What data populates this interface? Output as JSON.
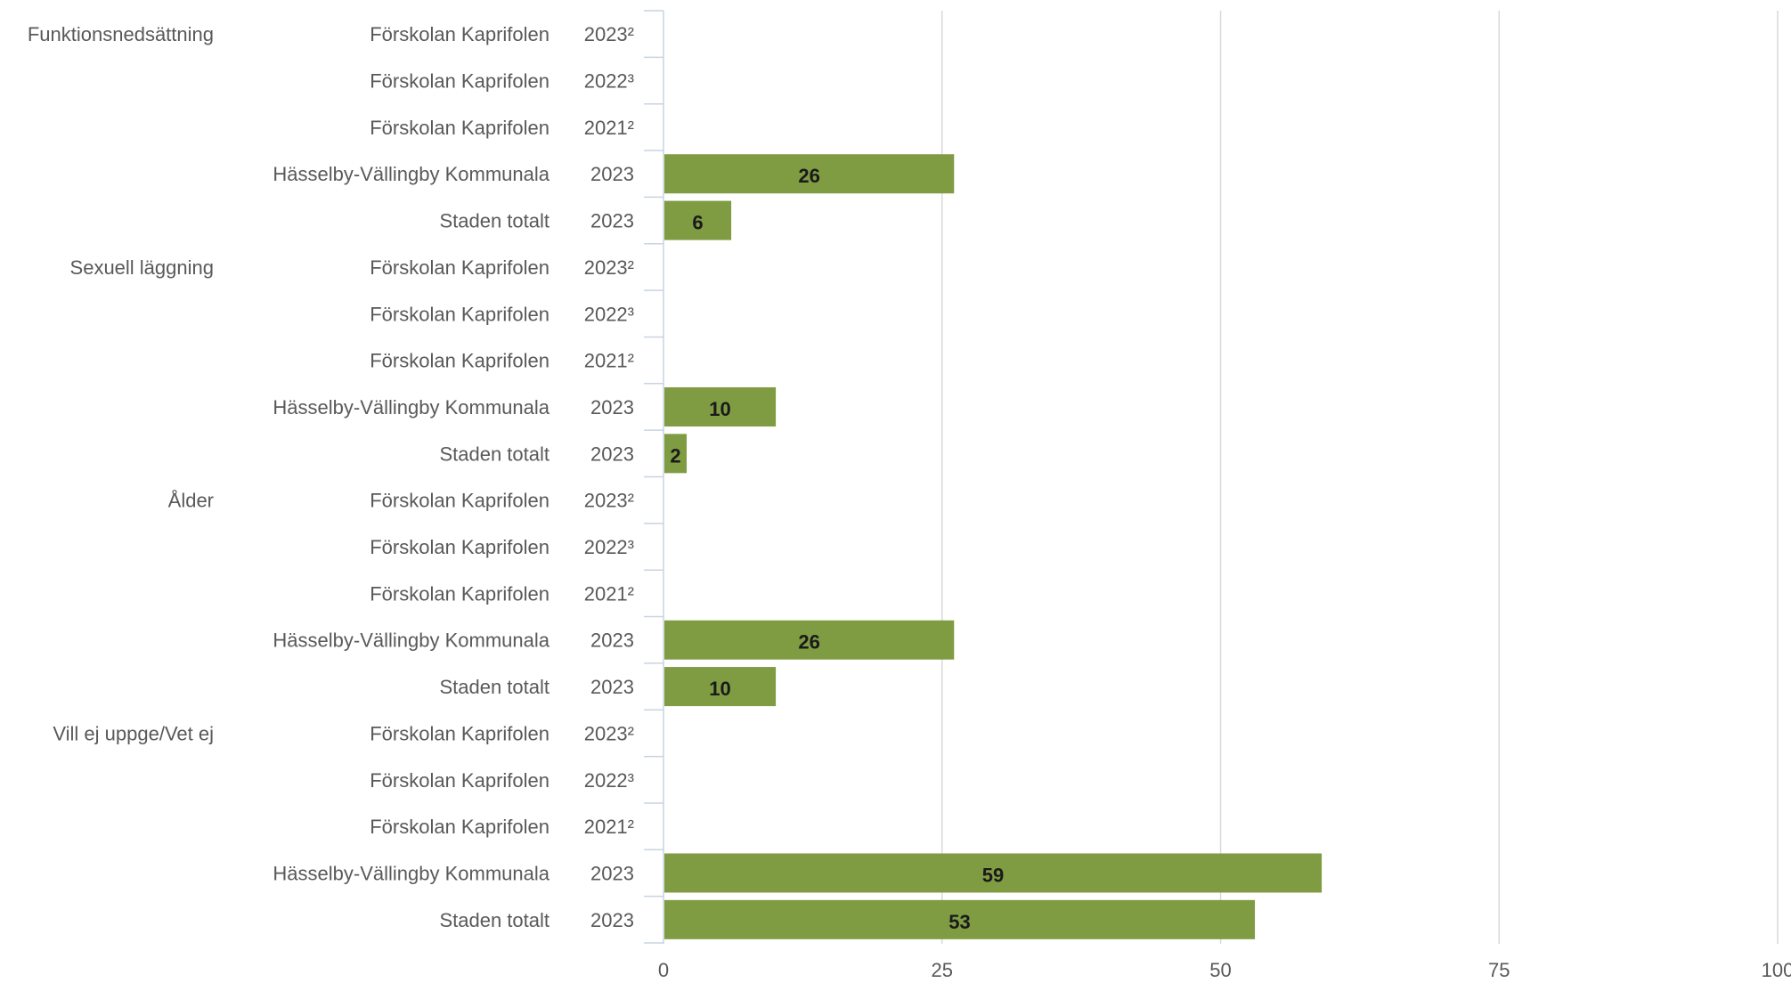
{
  "chart_data": {
    "type": "bar",
    "orientation": "horizontal",
    "xlim": [
      0,
      100
    ],
    "x_ticks": [
      "0",
      "25",
      "50",
      "75",
      "100"
    ],
    "grid": true,
    "bar_color": "#7f9c43",
    "groups": [
      {
        "category": "Funktionsnedsättning",
        "rows": [
          {
            "site": "Förskolan Kaprifolen",
            "year": "2023²",
            "value": null
          },
          {
            "site": "Förskolan Kaprifolen",
            "year": "2022³",
            "value": null
          },
          {
            "site": "Förskolan Kaprifolen",
            "year": "2021²",
            "value": null
          },
          {
            "site": "Hässelby-Vällingby Kommunala",
            "year": "2023",
            "value": 26
          },
          {
            "site": "Staden totalt",
            "year": "2023",
            "value": 6
          }
        ]
      },
      {
        "category": "Sexuell läggning",
        "rows": [
          {
            "site": "Förskolan Kaprifolen",
            "year": "2023²",
            "value": null
          },
          {
            "site": "Förskolan Kaprifolen",
            "year": "2022³",
            "value": null
          },
          {
            "site": "Förskolan Kaprifolen",
            "year": "2021²",
            "value": null
          },
          {
            "site": "Hässelby-Vällingby Kommunala",
            "year": "2023",
            "value": 10
          },
          {
            "site": "Staden totalt",
            "year": "2023",
            "value": 2
          }
        ]
      },
      {
        "category": "Ålder",
        "rows": [
          {
            "site": "Förskolan Kaprifolen",
            "year": "2023²",
            "value": null
          },
          {
            "site": "Förskolan Kaprifolen",
            "year": "2022³",
            "value": null
          },
          {
            "site": "Förskolan Kaprifolen",
            "year": "2021²",
            "value": null
          },
          {
            "site": "Hässelby-Vällingby Kommunala",
            "year": "2023",
            "value": 26
          },
          {
            "site": "Staden totalt",
            "year": "2023",
            "value": 10
          }
        ]
      },
      {
        "category": "Vill ej uppge/Vet ej",
        "rows": [
          {
            "site": "Förskolan Kaprifolen",
            "year": "2023²",
            "value": null
          },
          {
            "site": "Förskolan Kaprifolen",
            "year": "2022³",
            "value": null
          },
          {
            "site": "Förskolan Kaprifolen",
            "year": "2021²",
            "value": null
          },
          {
            "site": "Hässelby-Vällingby Kommunala",
            "year": "2023",
            "value": 59
          },
          {
            "site": "Staden totalt",
            "year": "2023",
            "value": 53
          }
        ]
      }
    ]
  }
}
